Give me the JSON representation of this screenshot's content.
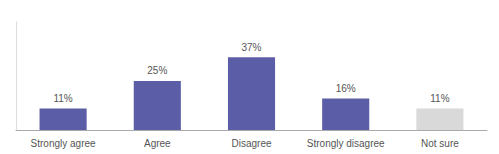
{
  "chart_data": {
    "type": "bar",
    "categories": [
      "Strongly agree",
      "Agree",
      "Disagree",
      "Strongly disagree",
      "Not sure"
    ],
    "values": [
      11,
      25,
      37,
      16,
      11
    ],
    "value_labels": [
      "11%",
      "25%",
      "37%",
      "16%",
      "11%"
    ],
    "data_labels": true,
    "colors": [
      "#5B5EA6",
      "#5B5EA6",
      "#5B5EA6",
      "#5B5EA6",
      "#D9D9D9"
    ],
    "ylim": [
      0,
      55
    ],
    "grid": false,
    "tick_labels": "x"
  }
}
